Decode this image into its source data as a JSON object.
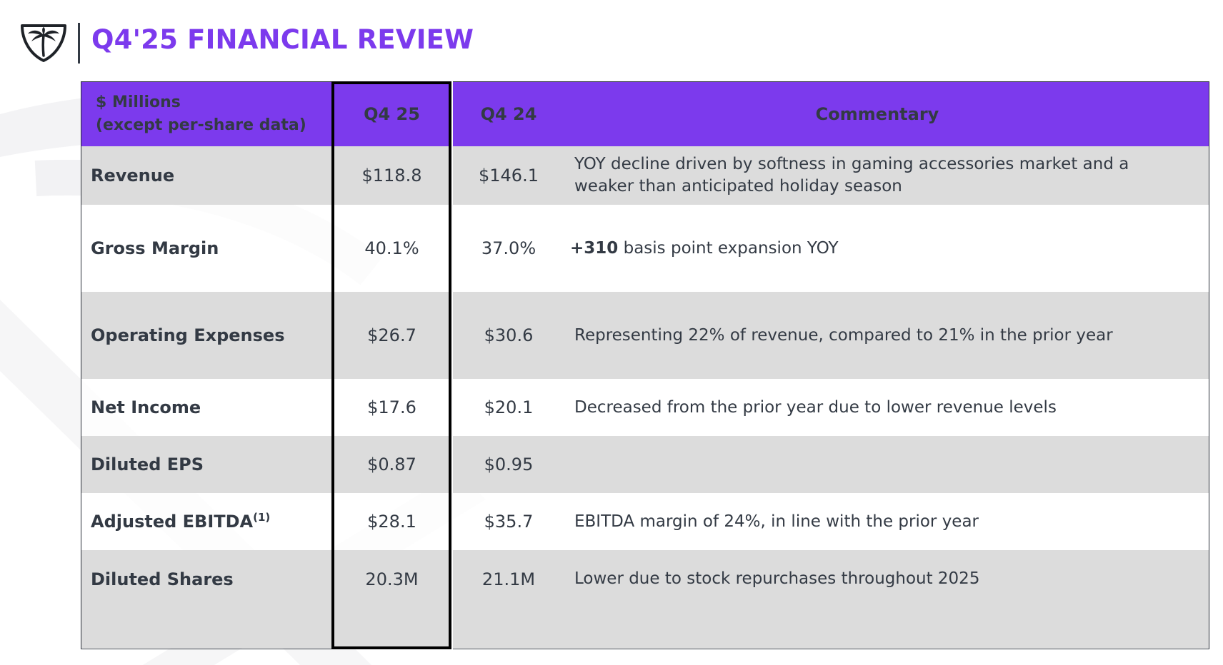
{
  "title": "Q4'25 FINANCIAL REVIEW",
  "brand": {
    "accent": "#7c3aed",
    "logo_icon": "palm-tree-shield-icon",
    "text_color": "#333a44"
  },
  "table": {
    "header": {
      "label_line1": "$ Millions",
      "label_line2": "(except per-share data)",
      "q4_25": "Q4 25",
      "q4_24": "Q4 24",
      "commentary": "Commentary"
    },
    "rows": [
      {
        "label": "Revenue",
        "q4_25": "$118.8",
        "q4_24": "$146.1",
        "comment_bold": "",
        "comment": "YOY decline driven by softness in gaming accessories market and a weaker than anticipated holiday season"
      },
      {
        "label": "Gross Margin",
        "q4_25": "40.1%",
        "q4_24": "37.0%",
        "comment_bold": "+310",
        "comment": " basis point expansion YOY"
      },
      {
        "label": "Operating Expenses",
        "q4_25": "$26.7",
        "q4_24": "$30.6",
        "comment_bold": "",
        "comment": "Representing 22% of revenue, compared to 21% in the prior year"
      },
      {
        "label": "Net Income",
        "q4_25": "$17.6",
        "q4_24": "$20.1",
        "comment_bold": "",
        "comment": "Decreased from the prior year due to lower revenue levels"
      },
      {
        "label": "Diluted EPS",
        "q4_25": "$0.87",
        "q4_24": "$0.95",
        "comment_bold": "",
        "comment": ""
      },
      {
        "label": "Adjusted EBITDA",
        "label_sup": "(1)",
        "q4_25": "$28.1",
        "q4_24": "$35.7",
        "comment_bold": "",
        "comment": "EBITDA margin of 24%, in line with the prior year"
      },
      {
        "label": "Diluted Shares",
        "q4_25": "20.3M",
        "q4_24": "21.1M",
        "comment_bold": "",
        "comment": "Lower due to stock repurchases throughout 2025"
      }
    ]
  }
}
